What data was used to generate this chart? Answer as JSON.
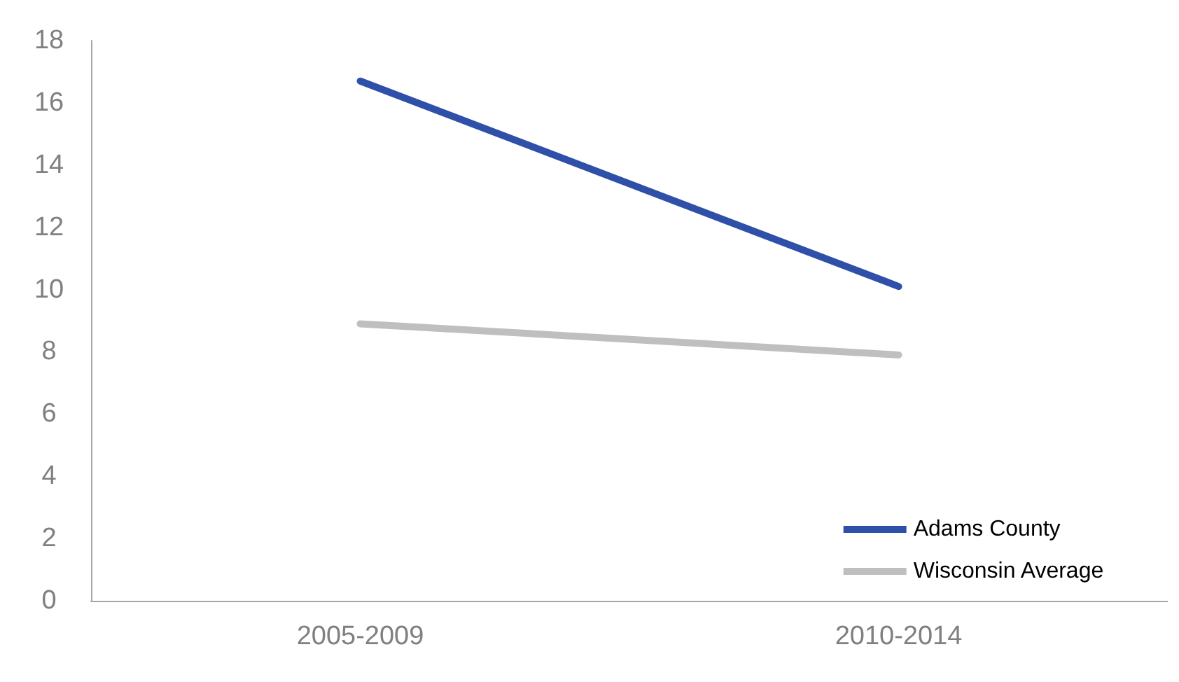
{
  "chart_data": {
    "type": "line",
    "categories": [
      "2005-2009",
      "2010-2014"
    ],
    "series": [
      {
        "name": "Adams County",
        "color": "#2e50a8",
        "values": [
          16.7,
          10.1
        ]
      },
      {
        "name": "Wisconsin Average",
        "color": "#bfbfbf",
        "values": [
          8.9,
          7.9
        ]
      }
    ],
    "ylim": [
      0,
      18
    ],
    "yticks": [
      0,
      2,
      4,
      6,
      8,
      10,
      12,
      14,
      16,
      18
    ],
    "grid": false,
    "legend": "bottom right",
    "marker": "none",
    "line_style": "solid"
  }
}
